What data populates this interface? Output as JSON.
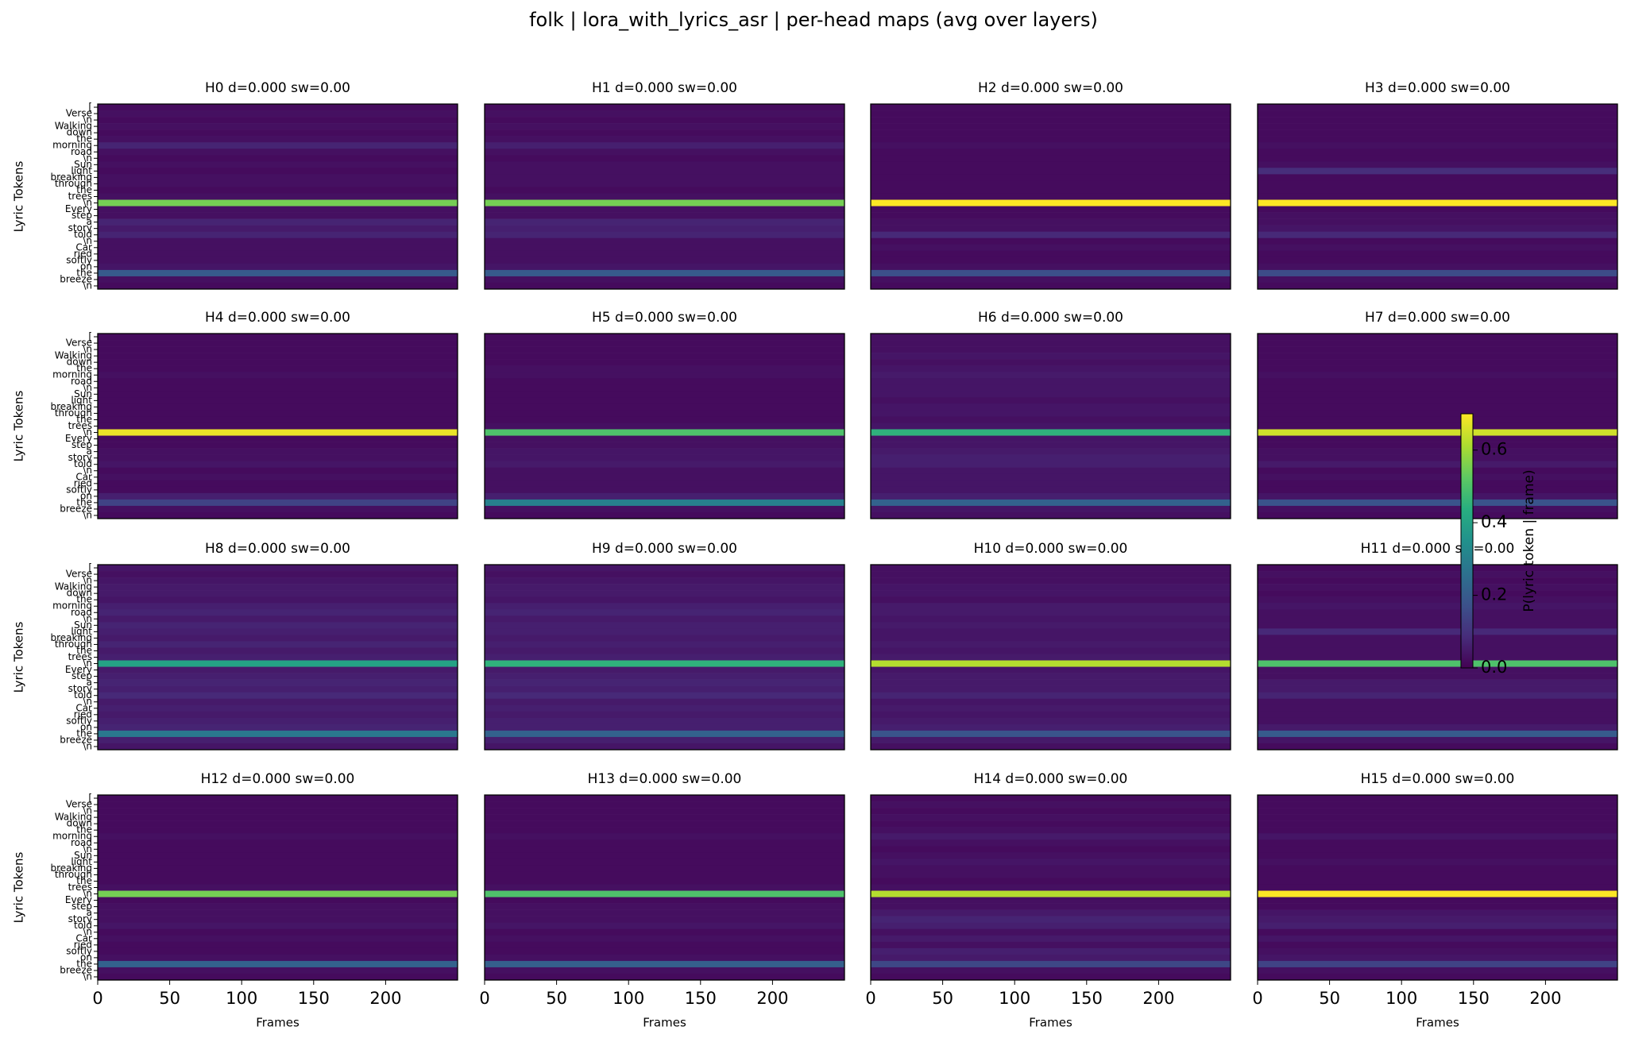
{
  "chart_data": {
    "type": "heatmap",
    "title": "folk | lora_with_lyrics_asr | per-head maps (avg over layers)",
    "xlabel": "Frames",
    "ylabel": "Lyric Tokens",
    "tokens": [
      "[",
      "Verse",
      "\\n",
      "Walking",
      "down",
      "the",
      "morning",
      "road",
      "\\n",
      "Sun",
      "light",
      "breaking",
      "through",
      "the",
      "trees",
      "\\n",
      "Every",
      "step",
      "a",
      "story",
      "told",
      "\\n",
      "Car",
      "ried",
      "softly",
      "on",
      "the",
      "breeze",
      "\\n"
    ],
    "xlim": [
      0,
      250
    ],
    "xticks": [
      0,
      50,
      100,
      150,
      200
    ],
    "colormap": "viridis",
    "colorbar": {
      "label": "P(lyric token | frame)",
      "lim": [
        0,
        0.7
      ],
      "ticks": [
        {
          "value": 0,
          "label": "0.0"
        },
        0.2,
        0.4,
        0.6
      ]
    },
    "heads": [
      {
        "title": "H0 d=0.000 sw=0.00",
        "values": [
          0.02,
          0.03,
          0.02,
          0.03,
          0.02,
          0.03,
          0.07,
          0.03,
          0.02,
          0.03,
          0.02,
          0.03,
          0.03,
          0.02,
          0.03,
          0.55,
          0.03,
          0.03,
          0.07,
          0.05,
          0.07,
          0.03,
          0.03,
          0.03,
          0.03,
          0.04,
          0.2,
          0.03,
          0.02
        ]
      },
      {
        "title": "H1 d=0.000 sw=0.00",
        "values": [
          0.02,
          0.03,
          0.02,
          0.03,
          0.02,
          0.03,
          0.06,
          0.03,
          0.02,
          0.03,
          0.03,
          0.03,
          0.03,
          0.02,
          0.03,
          0.55,
          0.03,
          0.03,
          0.07,
          0.06,
          0.07,
          0.03,
          0.03,
          0.03,
          0.03,
          0.04,
          0.2,
          0.03,
          0.02
        ]
      },
      {
        "title": "H2 d=0.000 sw=0.00",
        "values": [
          0.02,
          0.02,
          0.02,
          0.02,
          0.02,
          0.02,
          0.03,
          0.02,
          0.02,
          0.02,
          0.02,
          0.02,
          0.02,
          0.02,
          0.02,
          0.7,
          0.02,
          0.02,
          0.03,
          0.03,
          0.08,
          0.02,
          0.03,
          0.02,
          0.02,
          0.03,
          0.17,
          0.03,
          0.02
        ]
      },
      {
        "title": "H3 d=0.000 sw=0.00",
        "values": [
          0.02,
          0.02,
          0.02,
          0.02,
          0.02,
          0.02,
          0.03,
          0.02,
          0.02,
          0.03,
          0.09,
          0.02,
          0.02,
          0.02,
          0.02,
          0.7,
          0.02,
          0.03,
          0.03,
          0.04,
          0.08,
          0.02,
          0.03,
          0.02,
          0.02,
          0.03,
          0.16,
          0.03,
          0.02
        ]
      },
      {
        "title": "H4 d=0.000 sw=0.00",
        "values": [
          0.02,
          0.02,
          0.02,
          0.02,
          0.02,
          0.02,
          0.03,
          0.02,
          0.02,
          0.02,
          0.02,
          0.02,
          0.02,
          0.02,
          0.02,
          0.68,
          0.02,
          0.02,
          0.03,
          0.03,
          0.04,
          0.02,
          0.03,
          0.02,
          0.02,
          0.06,
          0.14,
          0.03,
          0.02
        ]
      },
      {
        "title": "H5 d=0.000 sw=0.00",
        "values": [
          0.02,
          0.02,
          0.02,
          0.02,
          0.02,
          0.03,
          0.03,
          0.02,
          0.02,
          0.02,
          0.02,
          0.02,
          0.02,
          0.02,
          0.03,
          0.5,
          0.03,
          0.03,
          0.04,
          0.04,
          0.05,
          0.03,
          0.03,
          0.03,
          0.03,
          0.06,
          0.3,
          0.03,
          0.02
        ]
      },
      {
        "title": "H6 d=0.000 sw=0.00",
        "values": [
          0.03,
          0.03,
          0.03,
          0.04,
          0.03,
          0.04,
          0.05,
          0.04,
          0.04,
          0.04,
          0.03,
          0.04,
          0.04,
          0.03,
          0.04,
          0.45,
          0.04,
          0.04,
          0.05,
          0.06,
          0.06,
          0.04,
          0.04,
          0.04,
          0.04,
          0.06,
          0.22,
          0.04,
          0.03
        ]
      },
      {
        "title": "H7 d=0.000 sw=0.00",
        "values": [
          0.02,
          0.02,
          0.02,
          0.02,
          0.02,
          0.02,
          0.03,
          0.02,
          0.02,
          0.02,
          0.02,
          0.02,
          0.02,
          0.02,
          0.02,
          0.65,
          0.02,
          0.02,
          0.03,
          0.03,
          0.05,
          0.02,
          0.03,
          0.02,
          0.02,
          0.04,
          0.18,
          0.03,
          0.02
        ]
      },
      {
        "title": "H8 d=0.000 sw=0.00",
        "values": [
          0.04,
          0.03,
          0.04,
          0.05,
          0.05,
          0.04,
          0.06,
          0.07,
          0.05,
          0.07,
          0.06,
          0.05,
          0.07,
          0.05,
          0.06,
          0.4,
          0.05,
          0.06,
          0.07,
          0.06,
          0.08,
          0.05,
          0.06,
          0.05,
          0.06,
          0.07,
          0.28,
          0.06,
          0.04
        ]
      },
      {
        "title": "H9 d=0.000 sw=0.00",
        "values": [
          0.04,
          0.03,
          0.04,
          0.05,
          0.05,
          0.04,
          0.06,
          0.07,
          0.05,
          0.06,
          0.06,
          0.05,
          0.06,
          0.05,
          0.06,
          0.45,
          0.05,
          0.06,
          0.07,
          0.06,
          0.08,
          0.05,
          0.06,
          0.05,
          0.06,
          0.06,
          0.22,
          0.06,
          0.04
        ]
      },
      {
        "title": "H10 d=0.000 sw=0.00",
        "values": [
          0.03,
          0.03,
          0.03,
          0.04,
          0.04,
          0.03,
          0.05,
          0.05,
          0.04,
          0.05,
          0.04,
          0.04,
          0.05,
          0.04,
          0.05,
          0.62,
          0.04,
          0.05,
          0.05,
          0.05,
          0.07,
          0.04,
          0.05,
          0.04,
          0.05,
          0.06,
          0.18,
          0.05,
          0.03
        ]
      },
      {
        "title": "H11 d=0.000 sw=0.00",
        "values": [
          0.02,
          0.03,
          0.02,
          0.03,
          0.02,
          0.03,
          0.04,
          0.03,
          0.03,
          0.03,
          0.08,
          0.03,
          0.03,
          0.03,
          0.03,
          0.5,
          0.03,
          0.03,
          0.05,
          0.05,
          0.07,
          0.03,
          0.03,
          0.03,
          0.03,
          0.05,
          0.2,
          0.04,
          0.02
        ]
      },
      {
        "title": "H12 d=0.000 sw=0.00",
        "values": [
          0.02,
          0.02,
          0.02,
          0.02,
          0.02,
          0.02,
          0.03,
          0.02,
          0.02,
          0.02,
          0.02,
          0.02,
          0.02,
          0.02,
          0.03,
          0.55,
          0.02,
          0.03,
          0.03,
          0.03,
          0.04,
          0.02,
          0.03,
          0.02,
          0.02,
          0.03,
          0.22,
          0.03,
          0.02
        ]
      },
      {
        "title": "H13 d=0.000 sw=0.00",
        "values": [
          0.02,
          0.02,
          0.02,
          0.02,
          0.02,
          0.02,
          0.03,
          0.02,
          0.02,
          0.02,
          0.02,
          0.02,
          0.02,
          0.02,
          0.03,
          0.5,
          0.02,
          0.03,
          0.03,
          0.03,
          0.04,
          0.02,
          0.03,
          0.02,
          0.02,
          0.03,
          0.21,
          0.03,
          0.02
        ]
      },
      {
        "title": "H14 d=0.000 sw=0.00",
        "values": [
          0.02,
          0.03,
          0.02,
          0.03,
          0.02,
          0.03,
          0.05,
          0.03,
          0.02,
          0.03,
          0.04,
          0.03,
          0.03,
          0.02,
          0.03,
          0.62,
          0.03,
          0.03,
          0.05,
          0.07,
          0.06,
          0.03,
          0.05,
          0.03,
          0.06,
          0.05,
          0.15,
          0.03,
          0.02
        ]
      },
      {
        "title": "H15 d=0.000 sw=0.00",
        "values": [
          0.02,
          0.02,
          0.02,
          0.02,
          0.02,
          0.02,
          0.04,
          0.02,
          0.02,
          0.02,
          0.03,
          0.02,
          0.02,
          0.02,
          0.02,
          0.7,
          0.02,
          0.02,
          0.04,
          0.05,
          0.06,
          0.02,
          0.04,
          0.02,
          0.03,
          0.04,
          0.14,
          0.03,
          0.02
        ]
      }
    ]
  }
}
